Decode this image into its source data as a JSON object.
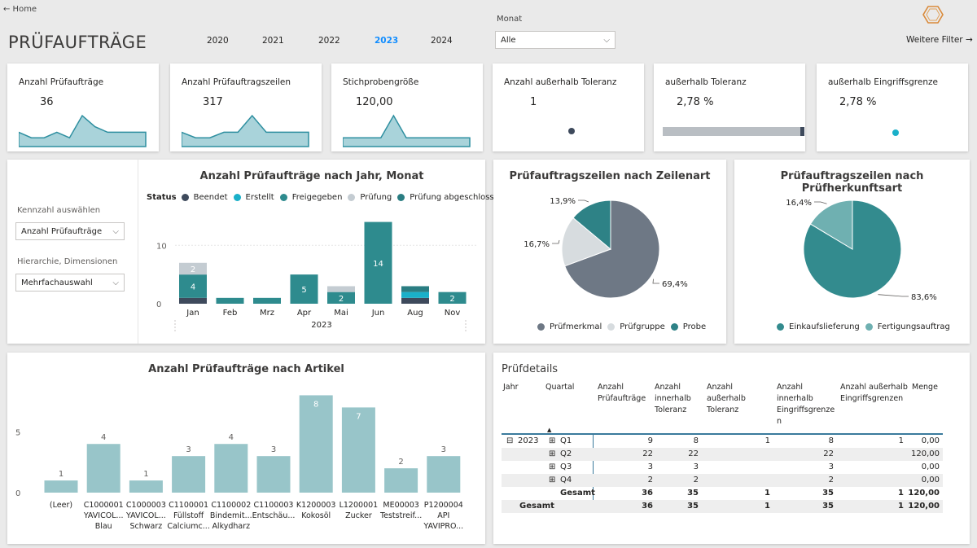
{
  "header": {
    "back_label": "← Home",
    "title": "PRÜFAUFTRÄGE",
    "years": [
      "2020",
      "2021",
      "2022",
      "2023",
      "2024"
    ],
    "active_year": "2023",
    "month_label": "Monat",
    "month_value": "Alle",
    "more_filters": "Weitere Filter →"
  },
  "kpis": [
    {
      "title": "Anzahl Prüfaufträge",
      "value": "36"
    },
    {
      "title": "Anzahl Prüfauftragszeilen",
      "value": "317"
    },
    {
      "title": "Stichprobengröße",
      "value": "120,00"
    },
    {
      "title": "Anzahl außerhalb Toleranz",
      "value": "1"
    },
    {
      "title": "außerhalb Toleranz",
      "value": "2,78 %",
      "progress": 0.97
    },
    {
      "title": "außerhalb Eingriffsgrenze",
      "value": "2,78 %"
    }
  ],
  "sparklines": {
    "pruefauftraege": [
      2,
      1,
      1,
      2,
      1,
      5,
      3,
      2,
      2,
      2,
      2
    ],
    "zeilen": [
      2,
      1,
      1,
      2,
      2,
      5,
      2,
      2,
      2,
      2
    ],
    "stichprobe": [
      1,
      1,
      1,
      1,
      5,
      1,
      1,
      1,
      1,
      1,
      1
    ]
  },
  "slicers": {
    "kennzahl_label": "Kennzahl auswählen",
    "kennzahl_value": "Anzahl Prüfaufträge",
    "hierarchie_label": "Hierarchie, Dimensionen",
    "hierarchie_value": "Mehrfachauswahl"
  },
  "colors": {
    "beendet": "#3e4a5c",
    "erstellt": "#1ab0c9",
    "freigegeben": "#2e8b8e",
    "pruefung": "#c4ccd2",
    "abgeschlossen": "#2a7d82",
    "gray_pie": "#6e7885",
    "light_pie": "#d7dcdf",
    "teal_pie": "#2e8286",
    "teal_main": "#338b8e",
    "teal_light": "#6fb0b1",
    "artikel_bar": "#98c5c9"
  },
  "chart_data": [
    {
      "type": "bar",
      "title": "Anzahl Prüfaufträge nach Jahr, Monat",
      "legend_title": "Status",
      "categories": [
        "Jan",
        "Feb",
        "Mrz",
        "Apr",
        "Mai",
        "Jun",
        "Aug",
        "Nov"
      ],
      "xlabel": "2023",
      "yticks": [
        "10",
        "0"
      ],
      "ylim": [
        0,
        14.5
      ],
      "series": [
        {
          "name": "Beendet",
          "color_key": "beendet",
          "values": [
            1,
            0,
            0,
            0,
            0,
            0,
            1,
            0
          ]
        },
        {
          "name": "Erstellt",
          "color_key": "erstellt",
          "values": [
            0,
            0,
            0,
            0,
            0,
            0,
            1,
            0
          ]
        },
        {
          "name": "Freigegeben",
          "color_key": "freigegeben",
          "values": [
            4,
            1,
            1,
            5,
            2,
            14,
            0,
            2
          ]
        },
        {
          "name": "Prüfung",
          "color_key": "pruefung",
          "values": [
            2,
            0,
            0,
            0,
            1,
            0,
            0,
            0
          ]
        },
        {
          "name": "Prüfung abgeschlossen",
          "color_key": "abgeschlossen",
          "values": [
            0,
            0,
            0,
            0,
            0,
            0,
            1,
            0
          ]
        }
      ],
      "data_labels": [
        {
          "cat": "Jan",
          "series": "Freigegeben",
          "text": "4"
        },
        {
          "cat": "Jan",
          "series": "Prüfung",
          "text": "2"
        },
        {
          "cat": "Apr",
          "series": "Freigegeben",
          "text": "5"
        },
        {
          "cat": "Mai",
          "series": "Freigegeben",
          "text": "2"
        },
        {
          "cat": "Jun",
          "series": "Freigegeben",
          "text": "14"
        },
        {
          "cat": "Nov",
          "series": "Freigegeben",
          "text": "2"
        }
      ]
    },
    {
      "type": "pie",
      "title": "Prüfauftragszeilen nach Zeilenart",
      "slices": [
        {
          "name": "Prüfmerkmal",
          "value": 69.4,
          "label": "69,4%",
          "color_key": "gray_pie"
        },
        {
          "name": "Prüfgruppe",
          "value": 16.7,
          "label": "16,7%",
          "color_key": "light_pie"
        },
        {
          "name": "Probe",
          "value": 13.9,
          "label": "13,9%",
          "color_key": "teal_pie"
        }
      ]
    },
    {
      "type": "pie",
      "title": "Prüfauftragszeilen nach Prüfherkunftsart",
      "slices": [
        {
          "name": "Einkaufslieferung",
          "value": 83.6,
          "label": "83,6%",
          "color_key": "teal_main"
        },
        {
          "name": "Fertigungsauftrag",
          "value": 16.4,
          "label": "16,4%",
          "color_key": "teal_light"
        }
      ]
    },
    {
      "type": "bar",
      "title": "Anzahl Prüfaufträge nach Artikel",
      "categories": [
        [
          "(Leer)"
        ],
        [
          "C1000001",
          "YAVICOL...",
          "Blau"
        ],
        [
          "C1000003",
          "YAVICOL...",
          "Schwarz"
        ],
        [
          "C1100001",
          "Füllstoff",
          "Calciumc..."
        ],
        [
          "C1100002",
          "Bindemit...",
          "Alkydharz"
        ],
        [
          "C1100003",
          "Entschäu..."
        ],
        [
          "K1200003",
          "Kokosöl"
        ],
        [
          "L1200001",
          "Zucker"
        ],
        [
          "ME00003",
          "Teststreif..."
        ],
        [
          "P1200004",
          "API",
          "YAVIPRO..."
        ]
      ],
      "values": [
        1,
        4,
        1,
        3,
        4,
        3,
        8,
        7,
        2,
        3
      ],
      "yticks": [
        "5",
        "0"
      ],
      "ylim": [
        0,
        8.9
      ]
    }
  ],
  "pruefdetails": {
    "title": "Prüfdetails",
    "headers": [
      [
        "Jahr"
      ],
      [
        "Quartal"
      ],
      [
        "Anzahl",
        "Prüfaufträge"
      ],
      [
        "Anzahl",
        "innerhalb",
        "Toleranz"
      ],
      [
        "Anzahl",
        "außerhalb",
        "Toleranz"
      ],
      [
        "Anzahl",
        "innerhalb",
        "Eingriffsgrenze",
        "n"
      ],
      [
        "Anzahl außerhalb",
        "Eingriffsgrenzen"
      ],
      [
        "Menge"
      ]
    ],
    "rows": [
      {
        "jahr": "2023",
        "quartal": "Q1",
        "a": "9",
        "b": "8",
        "c": "1",
        "d": "8",
        "e": "1",
        "f": "0,00"
      },
      {
        "jahr": "",
        "quartal": "Q2",
        "a": "22",
        "b": "22",
        "c": "",
        "d": "22",
        "e": "",
        "f": "120,00"
      },
      {
        "jahr": "",
        "quartal": "Q3",
        "a": "3",
        "b": "3",
        "c": "",
        "d": "3",
        "e": "",
        "f": "0,00"
      },
      {
        "jahr": "",
        "quartal": "Q4",
        "a": "2",
        "b": "2",
        "c": "",
        "d": "2",
        "e": "",
        "f": "0,00"
      }
    ],
    "subtotal": {
      "label": "Gesamt",
      "a": "36",
      "b": "35",
      "c": "1",
      "d": "35",
      "e": "1",
      "f": "120,00"
    },
    "total": {
      "label": "Gesamt",
      "a": "36",
      "b": "35",
      "c": "1",
      "d": "35",
      "e": "1",
      "f": "120,00"
    }
  }
}
